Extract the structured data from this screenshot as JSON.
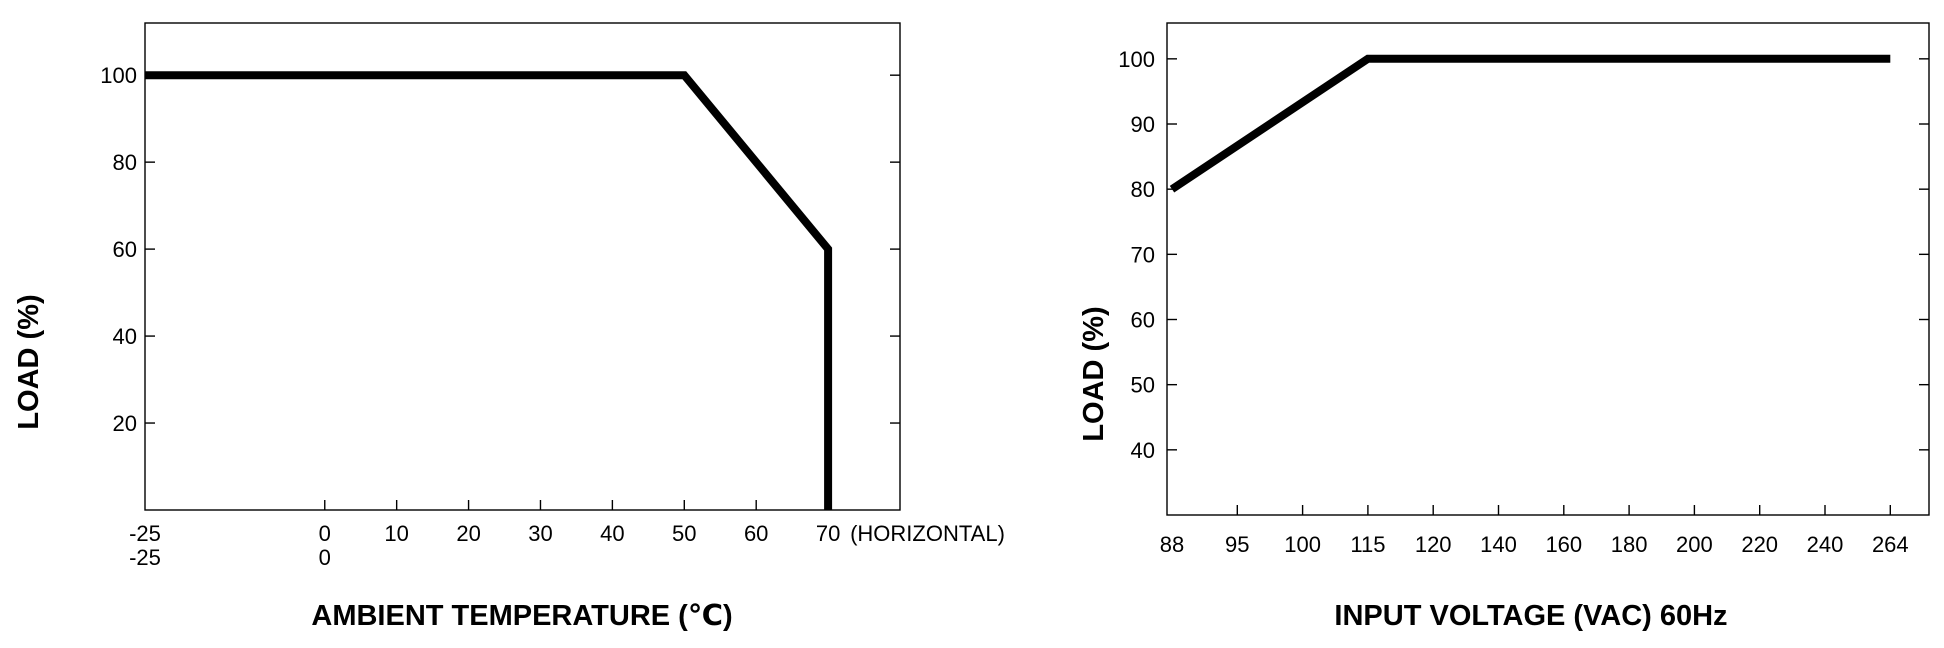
{
  "chart_data": [
    {
      "type": "line",
      "title": "",
      "xlabel": "AMBIENT TEMPERATURE (℃)",
      "ylabel": "LOAD (%)",
      "x_ticks": [
        "-25",
        "0",
        "10",
        "20",
        "30",
        "40",
        "50",
        "60",
        "70"
      ],
      "x_ticks_second_row": [
        "-25",
        "0"
      ],
      "x_tick_suffix": "(HORIZONTAL)",
      "y_ticks": [
        "20",
        "40",
        "60",
        "80",
        "100"
      ],
      "xlim": [
        -25,
        80
      ],
      "ylim": [
        0,
        112
      ],
      "grid": false,
      "series": [
        {
          "x": [
            -25,
            50,
            70,
            70
          ],
          "y": [
            100,
            100,
            60,
            0
          ]
        }
      ]
    },
    {
      "type": "line",
      "title": "",
      "xlabel": "INPUT VOLTAGE (VAC) 60Hz",
      "ylabel": "LOAD (%)",
      "x_categories": [
        "88",
        "95",
        "100",
        "115",
        "120",
        "140",
        "160",
        "180",
        "200",
        "220",
        "240",
        "264"
      ],
      "y_ticks": [
        "40",
        "50",
        "60",
        "70",
        "80",
        "90",
        "100"
      ],
      "ylim": [
        30,
        105.5
      ],
      "grid": false,
      "series": [
        {
          "x": [
            "88",
            "115",
            "264"
          ],
          "y": [
            80,
            100,
            100
          ]
        }
      ]
    }
  ]
}
